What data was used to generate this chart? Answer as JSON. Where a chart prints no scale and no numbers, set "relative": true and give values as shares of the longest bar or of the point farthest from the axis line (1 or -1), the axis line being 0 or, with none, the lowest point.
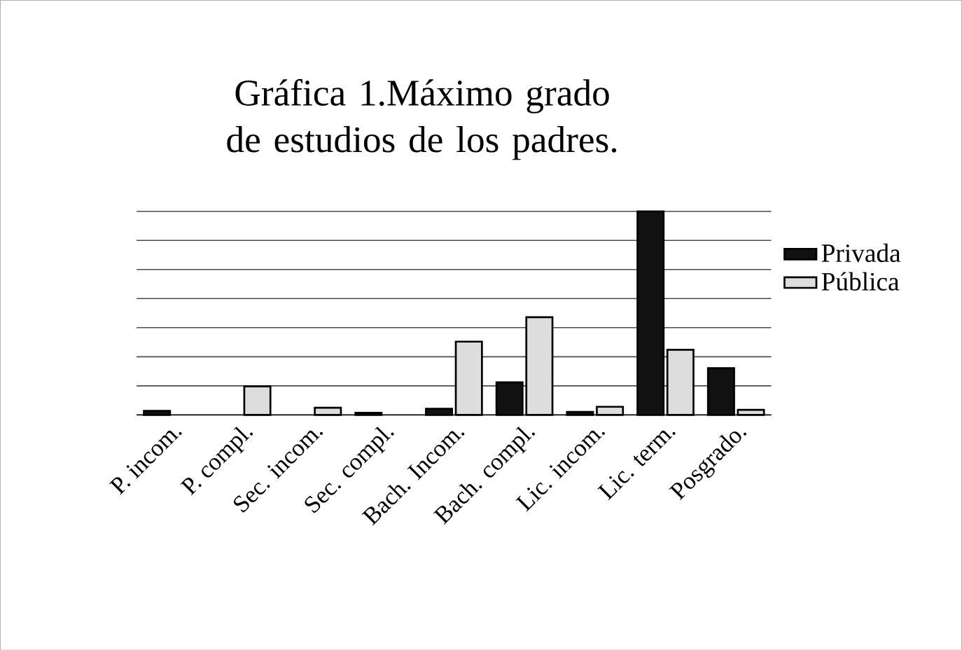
{
  "chart_data": {
    "type": "bar",
    "title": "Gráfica 1.Máximo grado de estudios de los padres.",
    "relative": true,
    "grid": "y",
    "legend": "right",
    "categories": [
      "P. incom.",
      "P. compl.",
      "Sec. incom.",
      "Sec. compl.",
      "Bach. Incom.",
      "Bach. compl.",
      "Lic. incom.",
      "Lic. term.",
      "Posgrado."
    ],
    "series": [
      {
        "name": "Privada",
        "color": "#111111",
        "values": [
          0.02,
          null,
          null,
          0.01,
          0.03,
          0.16,
          0.015,
          1,
          0.23
        ]
      },
      {
        "name": "Pública",
        "color": "#dddddd",
        "values": [
          null,
          0.14,
          0.035,
          null,
          0.36,
          0.48,
          0.04,
          0.32,
          0.025
        ]
      }
    ]
  }
}
